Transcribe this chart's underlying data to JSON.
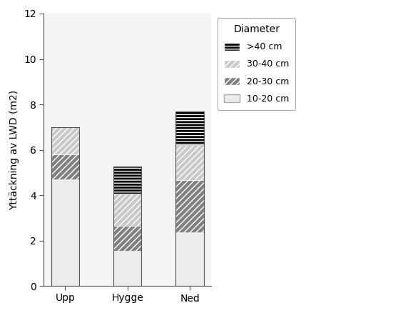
{
  "categories": [
    "Upp",
    "Hygge",
    "Ned"
  ],
  "segments": {
    "10-20 cm": [
      4.7,
      1.55,
      2.35
    ],
    "20-30 cm": [
      1.1,
      1.1,
      2.3
    ],
    "30-40 cm": [
      1.2,
      1.4,
      1.55
    ],
    ">40 cm": [
      0.0,
      1.2,
      1.5
    ]
  },
  "ylabel": "Yttäckning av LWD (m2)",
  "ylim": [
    0,
    12
  ],
  "yticks": [
    0,
    2,
    4,
    6,
    8,
    10,
    12
  ],
  "legend_title": "Diameter",
  "background_color": "#ffffff",
  "plot_bg_color": "#f5f5f5",
  "bar_width": 0.45
}
